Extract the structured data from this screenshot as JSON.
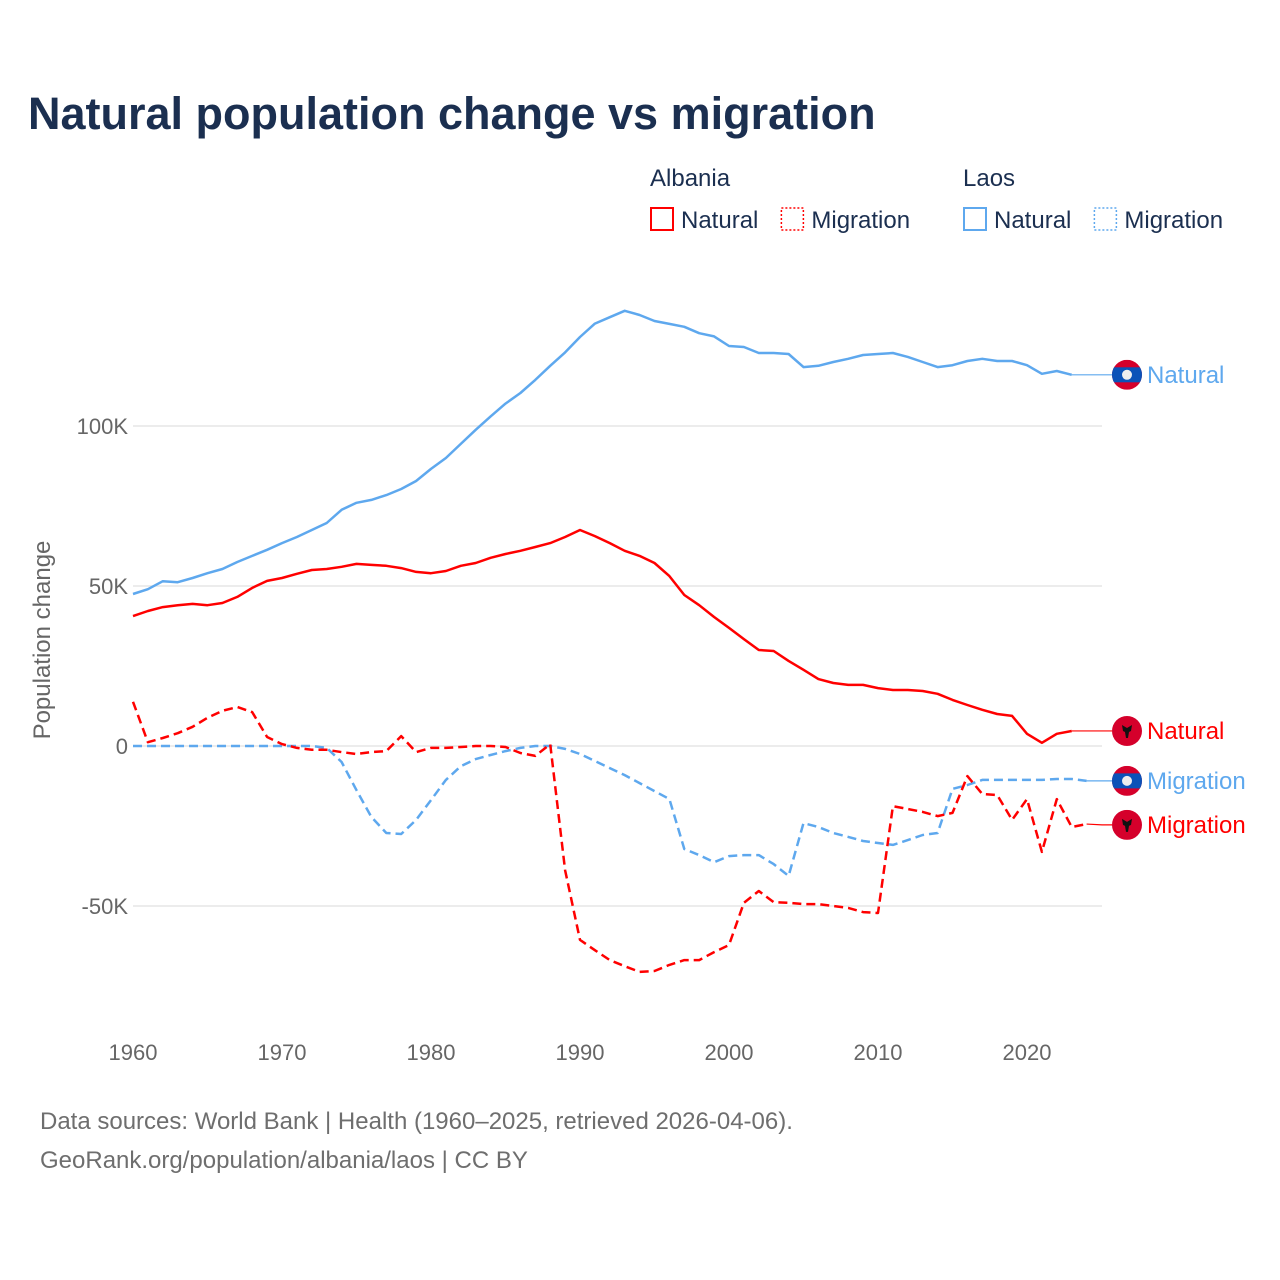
{
  "title": "Natural population change vs migration",
  "footer": {
    "line1": "Data sources: World Bank | Health (1960–2025, retrieved 2026-04-06).",
    "line2": "GeoRank.org/population/albania/laos | CC BY"
  },
  "colors": {
    "albania": "#ff0000",
    "laos": "#5ea8ee",
    "text": "#1b2f50",
    "grid": "#e6e6e6",
    "tick": "#666666"
  },
  "legend": {
    "groups": [
      {
        "name": "Albania",
        "items": [
          {
            "label": "Natural",
            "style": "solid"
          },
          {
            "label": "Migration",
            "style": "dotted"
          }
        ],
        "color": "#ff0000"
      },
      {
        "name": "Laos",
        "items": [
          {
            "label": "Natural",
            "style": "solid"
          },
          {
            "label": "Migration",
            "style": "dotted"
          }
        ],
        "color": "#5ea8ee"
      }
    ]
  },
  "chart_data": {
    "type": "line",
    "title": "Natural population change vs migration",
    "xlabel": "",
    "ylabel": "Population change",
    "xlim": [
      1960,
      2025
    ],
    "ylim": [
      -80000,
      140000
    ],
    "xticks": [
      1960,
      1970,
      1980,
      1990,
      2000,
      2010,
      2020
    ],
    "xtick_labels": [
      "1960",
      "1970",
      "1980",
      "1990",
      "2000",
      "2010",
      "2020"
    ],
    "yticks": [
      -50000,
      0,
      50000,
      100000
    ],
    "ytick_labels": [
      "-50K",
      "0",
      "50K",
      "100K"
    ],
    "grid": true,
    "legend_position": "top-right",
    "series": [
      {
        "name": "Laos Natural",
        "country": "Laos",
        "kind": "Natural",
        "dash": "solid",
        "end_label": "Natural",
        "flag": "laos-flag",
        "x_start": 1960,
        "values": [
          47500,
          49000,
          51500,
          51200,
          52500,
          54000,
          55300,
          57500,
          59400,
          61300,
          63400,
          65300,
          67500,
          69700,
          73800,
          76000,
          76900,
          78400,
          80300,
          82800,
          86600,
          90000,
          94400,
          98800,
          103000,
          107000,
          110300,
          114400,
          118800,
          123000,
          127800,
          132000,
          134000,
          136000,
          134700,
          132800,
          131900,
          131000,
          129000,
          128000,
          125000,
          124700,
          122800,
          122800,
          122500,
          118400,
          118800,
          120000,
          121000,
          122200,
          122500,
          122800,
          121600,
          120000,
          118400,
          119000,
          120300,
          121000,
          120300,
          120300,
          119000,
          116300,
          117200,
          116000
        ]
      },
      {
        "name": "Albania Natural",
        "country": "Albania",
        "kind": "Natural",
        "dash": "solid",
        "end_label": "Natural",
        "flag": "albania-flag",
        "x_start": 1960,
        "values": [
          40600,
          42200,
          43400,
          44000,
          44400,
          44000,
          44700,
          46600,
          49400,
          51600,
          52500,
          53800,
          55000,
          55300,
          56000,
          56900,
          56600,
          56300,
          55600,
          54400,
          54000,
          54700,
          56300,
          57200,
          58800,
          60000,
          61000,
          62200,
          63400,
          65300,
          67500,
          65600,
          63400,
          61000,
          59400,
          57200,
          53100,
          47200,
          44000,
          40300,
          36900,
          33400,
          30000,
          29700,
          26600,
          23800,
          20900,
          19700,
          19100,
          19100,
          18100,
          17500,
          17500,
          17200,
          16300,
          14400,
          12800,
          11300,
          10000,
          9400,
          3800,
          1000,
          3800,
          4700
        ]
      },
      {
        "name": "Laos Migration",
        "country": "Laos",
        "kind": "Migration",
        "dash": "dashed",
        "end_label": "Migration",
        "flag": "laos-flag",
        "x_start": 1960,
        "values": [
          0,
          0,
          0,
          0,
          0,
          0,
          0,
          0,
          0,
          0,
          0,
          0,
          0,
          -600,
          -5000,
          -13800,
          -22200,
          -27200,
          -27500,
          -23100,
          -16900,
          -10600,
          -6300,
          -4100,
          -2800,
          -1600,
          -600,
          0,
          0,
          -900,
          -2500,
          -4700,
          -6900,
          -9100,
          -11600,
          -14100,
          -16600,
          -32200,
          -34100,
          -36300,
          -34400,
          -34100,
          -34100,
          -36900,
          -40600,
          -24100,
          -25300,
          -27200,
          -28400,
          -29700,
          -30300,
          -30900,
          -29400,
          -27800,
          -27200,
          -13400,
          -12200,
          -10600,
          -10600,
          -10600,
          -10600,
          -10600,
          -10300,
          -10300,
          -10900
        ]
      },
      {
        "name": "Albania Migration",
        "country": "Albania",
        "kind": "Migration",
        "dash": "dashed",
        "end_label": "Migration",
        "flag": "albania-flag",
        "x_start": 1960,
        "values": [
          13800,
          1200,
          2500,
          4000,
          6000,
          8800,
          11000,
          12200,
          10600,
          2800,
          600,
          -600,
          -1200,
          -1200,
          -1900,
          -2500,
          -1900,
          -1600,
          3100,
          -1900,
          -600,
          -600,
          -300,
          0,
          0,
          -300,
          -2200,
          -3100,
          600,
          -38800,
          -60600,
          -63800,
          -66900,
          -68800,
          -70600,
          -70300,
          -68400,
          -66900,
          -66900,
          -64400,
          -62200,
          -49000,
          -45300,
          -48800,
          -49000,
          -49400,
          -49400,
          -50000,
          -50600,
          -51900,
          -52200,
          -18800,
          -19700,
          -20600,
          -21900,
          -20900,
          -9400,
          -15000,
          -15300,
          -23100,
          -16600,
          -33100,
          -16600,
          -25300,
          -24400
        ]
      }
    ]
  }
}
